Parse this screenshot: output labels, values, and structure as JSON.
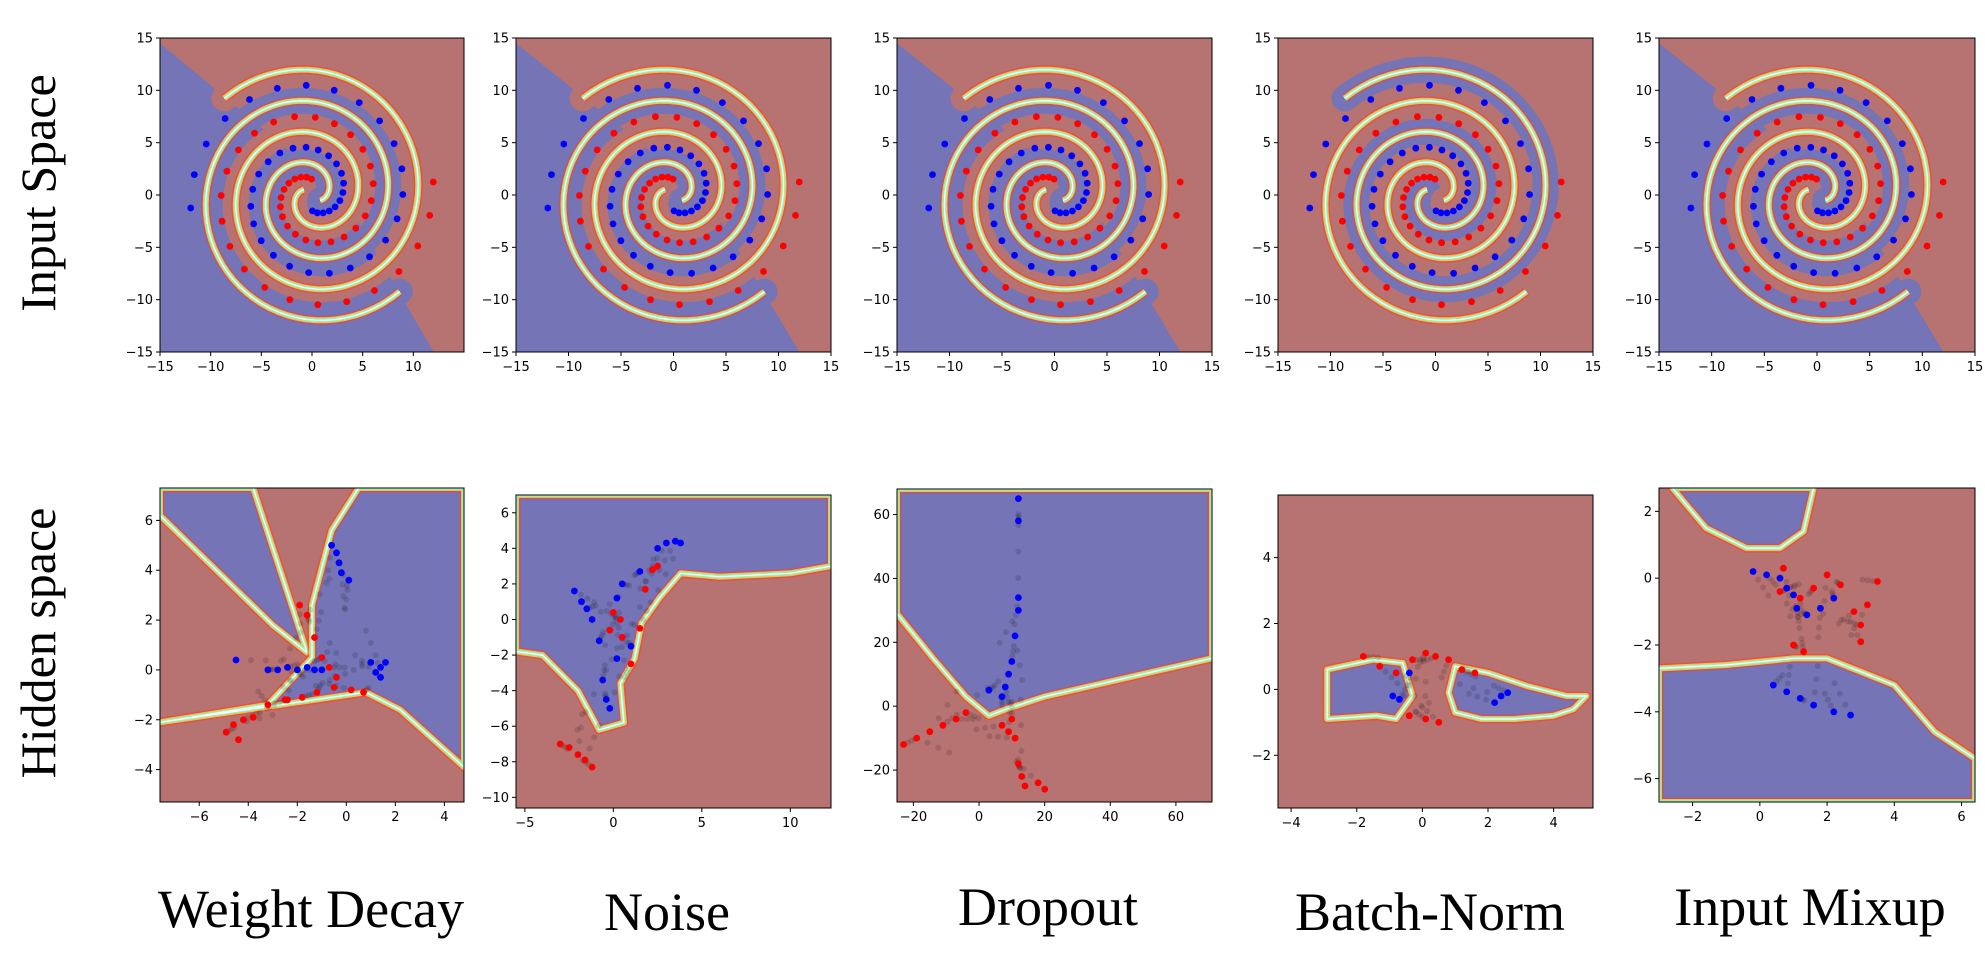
{
  "row_labels": [
    "Input Space",
    "Hidden space"
  ],
  "column_labels": [
    "Weight Decay",
    "Noise",
    "Dropout",
    "Batch-Norm",
    "Input Mixup"
  ],
  "colors": {
    "class_red_region": "#b77272",
    "class_blue_region": "#7474b6",
    "point_red": "#ff0000",
    "point_blue": "#0000ff",
    "hidden_trace": "#000000"
  },
  "chart_data": [
    {
      "id": "ws-weight-decay",
      "type": "scatter",
      "row": "Input Space",
      "column": "Weight Decay",
      "xlim": [
        -15,
        15
      ],
      "ylim": [
        -15,
        15
      ],
      "xlim_shown": [
        -15,
        14
      ],
      "xticks": [
        -15,
        -10,
        -5,
        0,
        5,
        10
      ],
      "yticks": [
        -15,
        -10,
        -5,
        0,
        5,
        10,
        15
      ],
      "series": [
        {
          "class": "red",
          "values": "spiral"
        },
        {
          "class": "blue",
          "values": "spiral"
        }
      ],
      "regions": {
        "background": "blue",
        "spiral": true
      }
    },
    {
      "id": "ws-noise",
      "type": "scatter",
      "row": "Input Space",
      "column": "Noise",
      "xlim": [
        -15,
        15
      ],
      "ylim": [
        -15,
        15
      ],
      "xticks": [
        -15,
        -10,
        -5,
        0,
        5,
        10,
        15
      ],
      "yticks": [
        -15,
        -10,
        -5,
        0,
        5,
        10,
        15
      ],
      "regions": {
        "background": "blue",
        "spiral": true
      }
    },
    {
      "id": "ws-dropout",
      "type": "scatter",
      "row": "Input Space",
      "column": "Dropout",
      "xlim": [
        -15,
        15
      ],
      "ylim": [
        -15,
        15
      ],
      "xticks": [
        -15,
        -10,
        -5,
        0,
        5,
        10,
        15
      ],
      "yticks": [
        -15,
        -10,
        -5,
        0,
        5,
        10,
        15
      ],
      "regions": {
        "background": "blue",
        "spiral": true
      }
    },
    {
      "id": "ws-batchnorm",
      "type": "scatter",
      "row": "Input Space",
      "column": "Batch-Norm",
      "xlim": [
        -15,
        15
      ],
      "ylim": [
        -15,
        15
      ],
      "xticks": [
        -15,
        -10,
        -5,
        0,
        5,
        10,
        15
      ],
      "yticks": [
        -15,
        -10,
        -5,
        0,
        5,
        10,
        15
      ],
      "regions": {
        "background": "red",
        "spiral": true
      }
    },
    {
      "id": "ws-mixup",
      "type": "scatter",
      "row": "Input Space",
      "column": "Input Mixup",
      "xlim": [
        -15,
        15
      ],
      "ylim": [
        -15,
        15
      ],
      "xticks": [
        -15,
        -10,
        -5,
        0,
        5,
        10,
        15
      ],
      "yticks": [
        -15,
        -10,
        -5,
        0,
        5,
        10,
        15
      ],
      "regions": {
        "background": "blue",
        "spiral": true
      }
    },
    {
      "id": "hs-weight-decay",
      "type": "scatter",
      "row": "Hidden space",
      "column": "Weight Decay",
      "xlim": [
        -7.6,
        4.8
      ],
      "ylim": [
        -5.3,
        7.3
      ],
      "xticks": [
        -6,
        -4,
        -2,
        0,
        2,
        4
      ],
      "yticks": [
        -4,
        -2,
        0,
        2,
        4,
        6
      ],
      "red": [
        [
          -4.9,
          -2.5
        ],
        [
          -4.6,
          -2.2
        ],
        [
          -4.2,
          -2.0
        ],
        [
          -3.8,
          -1.9
        ],
        [
          -3.2,
          -1.4
        ],
        [
          -2.5,
          -1.2
        ],
        [
          -1.8,
          -1.1
        ],
        [
          -1.2,
          -0.9
        ],
        [
          -0.5,
          -0.7
        ],
        [
          0.2,
          -0.8
        ],
        [
          0.7,
          -0.9
        ],
        [
          -1.9,
          2.6
        ],
        [
          -1.6,
          2.2
        ],
        [
          -1.3,
          1.3
        ],
        [
          -1.0,
          0.5
        ],
        [
          -0.7,
          0.1
        ],
        [
          -0.4,
          -0.3
        ],
        [
          -2.4,
          -1.2
        ],
        [
          -4.4,
          -2.8
        ]
      ],
      "blue": [
        [
          -0.6,
          5.0
        ],
        [
          -0.4,
          4.7
        ],
        [
          -0.3,
          4.3
        ],
        [
          -0.2,
          3.9
        ],
        [
          0.1,
          3.6
        ],
        [
          -1.0,
          0.0
        ],
        [
          -1.3,
          0.0
        ],
        [
          -1.6,
          0.1
        ],
        [
          -2.0,
          0.0
        ],
        [
          -2.4,
          0.1
        ],
        [
          -2.8,
          0.0
        ],
        [
          -3.2,
          0.0
        ],
        [
          -4.5,
          0.4
        ],
        [
          1.0,
          0.3
        ],
        [
          1.2,
          -0.1
        ],
        [
          1.4,
          0.1
        ],
        [
          1.6,
          0.3
        ],
        [
          1.4,
          -0.3
        ]
      ],
      "boundaries": [
        [
          [
            -7.6,
            6.3
          ],
          [
            -3.2,
            1.7
          ],
          [
            -1.5,
            0.8
          ],
          [
            0.8,
            -0.9
          ],
          [
            4.8,
            -3.9
          ]
        ],
        [
          [
            -7.6,
            -2.2
          ],
          [
            -3.0,
            -1.4
          ],
          [
            -1.6,
            0.4
          ],
          [
            -2.4,
            2.4
          ],
          [
            -3.8,
            7.3
          ]
        ],
        [
          [
            -0.2,
            5.0
          ],
          [
            1.0,
            0.8
          ],
          [
            2.2,
            -1.5
          ],
          [
            3.6,
            -3.0
          ],
          [
            4.8,
            -3.9
          ]
        ]
      ],
      "background": "red",
      "blue_regions": [
        [
          [
            -7.6,
            7.3
          ],
          [
            -7.6,
            6.2
          ],
          [
            -3.0,
            1.8
          ],
          [
            -1.6,
            0.7
          ],
          [
            -3.8,
            7.3
          ]
        ],
        [
          [
            -7.6,
            -2.1
          ],
          [
            -3.2,
            -1.4
          ],
          [
            -1.4,
            0.5
          ],
          [
            -1.4,
            2.6
          ],
          [
            -0.6,
            5.6
          ],
          [
            0.5,
            7.3
          ],
          [
            4.8,
            7.3
          ],
          [
            4.8,
            -3.9
          ],
          [
            2.2,
            -1.6
          ],
          [
            0.8,
            -0.9
          ]
        ]
      ]
    },
    {
      "id": "hs-noise",
      "type": "scatter",
      "row": "Hidden space",
      "column": "Noise",
      "xlim": [
        -5.5,
        12.3
      ],
      "ylim": [
        -10.6,
        7.0
      ],
      "xticks": [
        -5,
        0,
        5,
        10
      ],
      "yticks": [
        -10,
        -8,
        -6,
        -4,
        -2,
        0,
        2,
        4,
        6
      ],
      "red": [
        [
          -3.0,
          -7.0
        ],
        [
          -2.5,
          -7.2
        ],
        [
          -2.0,
          -7.6
        ],
        [
          -1.6,
          -7.9
        ],
        [
          -1.2,
          -8.3
        ],
        [
          0.0,
          0.4
        ],
        [
          0.4,
          0.0
        ],
        [
          1.0,
          -2.5
        ],
        [
          1.5,
          -0.5
        ],
        [
          1.8,
          1.7
        ],
        [
          2.2,
          2.8
        ],
        [
          2.5,
          3.0
        ],
        [
          -0.2,
          -0.6
        ],
        [
          0.5,
          -1.0
        ]
      ],
      "blue": [
        [
          -2.2,
          1.6
        ],
        [
          -1.8,
          1.0
        ],
        [
          -1.5,
          0.6
        ],
        [
          -1.2,
          0.0
        ],
        [
          -0.8,
          -1.2
        ],
        [
          -0.6,
          -3.4
        ],
        [
          -0.4,
          -4.5
        ],
        [
          -0.2,
          -5.0
        ],
        [
          0.2,
          1.2
        ],
        [
          0.5,
          2.0
        ],
        [
          1.0,
          -1.5
        ],
        [
          1.5,
          2.7
        ],
        [
          2.5,
          4.0
        ],
        [
          3.0,
          4.3
        ],
        [
          3.5,
          4.4
        ],
        [
          3.8,
          4.3
        ],
        [
          0.2,
          -2.2
        ]
      ],
      "background": "red",
      "blue_region": [
        [
          -5.5,
          -1.8
        ],
        [
          -4.0,
          -2.0
        ],
        [
          -2.0,
          -4.0
        ],
        [
          -0.8,
          -6.2
        ],
        [
          0.6,
          -5.8
        ],
        [
          0.4,
          -3.6
        ],
        [
          1.2,
          -2.2
        ],
        [
          1.6,
          -0.2
        ],
        [
          2.6,
          1.2
        ],
        [
          3.8,
          2.6
        ],
        [
          6.0,
          2.4
        ],
        [
          10.0,
          2.6
        ],
        [
          12.3,
          3.0
        ],
        [
          12.3,
          7.0
        ],
        [
          -5.5,
          7.0
        ]
      ]
    },
    {
      "id": "hs-dropout",
      "type": "scatter",
      "row": "Hidden space",
      "column": "Dropout",
      "xlim": [
        -25,
        71
      ],
      "ylim": [
        -30,
        68
      ],
      "xticks": [
        -20,
        0,
        20,
        40,
        60
      ],
      "yticks": [
        -20,
        0,
        20,
        40,
        60
      ],
      "red": [
        [
          -23,
          -12
        ],
        [
          -19,
          -10
        ],
        [
          -15,
          -8
        ],
        [
          -11,
          -6
        ],
        [
          -7,
          -4
        ],
        [
          -4,
          -2
        ],
        [
          10,
          -4
        ],
        [
          11,
          -10
        ],
        [
          12,
          -18
        ],
        [
          13,
          -22
        ],
        [
          14,
          -25
        ],
        [
          18,
          -24
        ],
        [
          20,
          -26
        ],
        [
          9,
          -8
        ],
        [
          7,
          -6
        ]
      ],
      "blue": [
        [
          12,
          65
        ],
        [
          12,
          58
        ],
        [
          12,
          34
        ],
        [
          12,
          30
        ],
        [
          11,
          22
        ],
        [
          10,
          14
        ],
        [
          9,
          10
        ],
        [
          8,
          6
        ],
        [
          7,
          3
        ],
        [
          3,
          5
        ]
      ],
      "background": "red",
      "blue_region": [
        [
          -25,
          29
        ],
        [
          -14,
          15
        ],
        [
          -4,
          3
        ],
        [
          3,
          -3
        ],
        [
          8,
          -1
        ],
        [
          20,
          3
        ],
        [
          71,
          15
        ],
        [
          71,
          68
        ],
        [
          -25,
          68
        ]
      ]
    },
    {
      "id": "hs-batchnorm",
      "type": "scatter",
      "row": "Hidden space",
      "column": "Batch-Norm",
      "xlim": [
        -4.4,
        5.2
      ],
      "ylim": [
        -3.6,
        5.9
      ],
      "xticks": [
        -4,
        -2,
        0,
        2,
        4
      ],
      "yticks": [
        -2,
        0,
        2,
        4
      ],
      "red": [
        [
          -1.8,
          1.0
        ],
        [
          -1.3,
          0.7
        ],
        [
          -0.8,
          0.5
        ],
        [
          -0.3,
          0.9
        ],
        [
          0.1,
          1.1
        ],
        [
          0.4,
          1.0
        ],
        [
          0.8,
          0.9
        ],
        [
          1.2,
          0.6
        ],
        [
          1.6,
          0.5
        ],
        [
          0.1,
          -0.9
        ],
        [
          0.5,
          -1.0
        ],
        [
          -0.4,
          -0.8
        ]
      ],
      "blue": [
        [
          -0.9,
          -0.2
        ],
        [
          -0.7,
          -0.3
        ],
        [
          -0.4,
          0.5
        ],
        [
          2.4,
          -0.2
        ],
        [
          2.6,
          -0.1
        ],
        [
          2.2,
          -0.4
        ]
      ],
      "background": "red",
      "blue_regions": [
        [
          [
            -2.9,
            0.6
          ],
          [
            -1.5,
            0.9
          ],
          [
            -0.6,
            0.8
          ],
          [
            -0.3,
            -0.2
          ],
          [
            -0.8,
            -0.9
          ],
          [
            -1.4,
            -0.8
          ],
          [
            -2.9,
            -0.9
          ]
        ],
        [
          [
            1.0,
            0.7
          ],
          [
            2.0,
            0.5
          ],
          [
            3.2,
            0.1
          ],
          [
            4.4,
            -0.2
          ],
          [
            5.0,
            -0.2
          ],
          [
            4.6,
            -0.6
          ],
          [
            4.0,
            -0.8
          ],
          [
            2.8,
            -0.9
          ],
          [
            1.8,
            -0.9
          ],
          [
            1.0,
            -0.7
          ],
          [
            0.8,
            -0.1
          ]
        ]
      ]
    },
    {
      "id": "hs-mixup",
      "type": "scatter",
      "row": "Hidden space",
      "column": "Input Mixup",
      "xlim": [
        -3.0,
        6.4
      ],
      "ylim": [
        -6.7,
        2.7
      ],
      "xticks": [
        -2,
        0,
        2,
        4,
        6
      ],
      "yticks": [
        -6,
        -4,
        -2,
        0,
        2
      ],
      "red": [
        [
          0.6,
          -0.4
        ],
        [
          1.2,
          -0.6
        ],
        [
          1.6,
          -0.3
        ],
        [
          2.0,
          0.1
        ],
        [
          2.4,
          -0.2
        ],
        [
          2.8,
          -1.0
        ],
        [
          3.0,
          -1.4
        ],
        [
          3.2,
          -0.8
        ],
        [
          3.5,
          -0.1
        ],
        [
          1.0,
          -2.0
        ],
        [
          1.3,
          -2.2
        ],
        [
          0.7,
          0.3
        ],
        [
          3.0,
          -1.9
        ]
      ],
      "blue": [
        [
          -0.2,
          0.2
        ],
        [
          0.2,
          0.1
        ],
        [
          0.6,
          0.0
        ],
        [
          0.8,
          -0.3
        ],
        [
          1.1,
          -0.9
        ],
        [
          1.4,
          -1.1
        ],
        [
          1.8,
          -0.9
        ],
        [
          2.2,
          -0.6
        ],
        [
          0.4,
          -3.2
        ],
        [
          0.8,
          -3.4
        ],
        [
          1.2,
          -3.6
        ],
        [
          1.6,
          -3.8
        ],
        [
          2.2,
          -4.0
        ],
        [
          2.7,
          -4.1
        ],
        [
          1.0,
          -0.5
        ]
      ],
      "background": "red",
      "blue_regions": [
        [
          [
            -3.0,
            -2.7
          ],
          [
            -1.0,
            -2.6
          ],
          [
            1.0,
            -2.4
          ],
          [
            2.0,
            -2.4
          ],
          [
            3.0,
            -2.8
          ],
          [
            4.0,
            -3.2
          ],
          [
            5.2,
            -4.6
          ],
          [
            6.4,
            -5.4
          ],
          [
            6.4,
            -6.7
          ],
          [
            -3.0,
            -6.7
          ]
        ],
        [
          [
            -2.6,
            2.7
          ],
          [
            -1.6,
            1.5
          ],
          [
            -0.4,
            0.9
          ],
          [
            0.6,
            0.9
          ],
          [
            1.3,
            1.4
          ],
          [
            1.6,
            2.7
          ]
        ]
      ]
    }
  ]
}
